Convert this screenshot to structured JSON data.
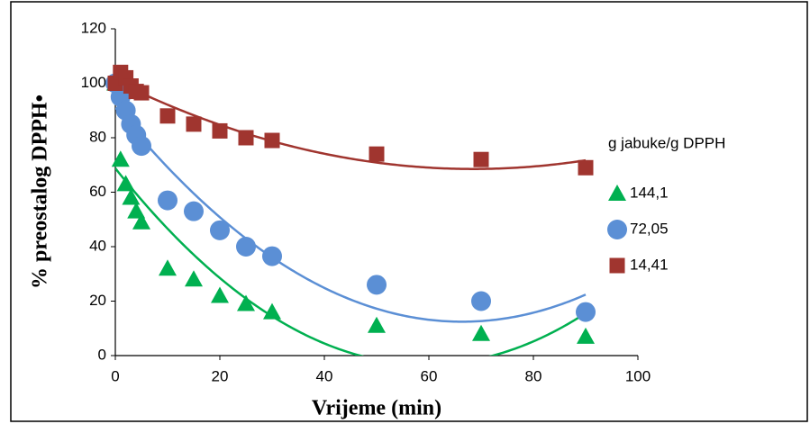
{
  "chart_data": {
    "type": "scatter",
    "x_label": "Vrijeme (min)",
    "y_label": "% preostalog DPPH•",
    "legend_title": "g jabuke/g DPPH",
    "legend": "right",
    "grid": false,
    "trendline_order": 2,
    "x": [
      0,
      1,
      2,
      3,
      4,
      5,
      10,
      15,
      20,
      25,
      30,
      50,
      70,
      90
    ],
    "series": [
      {
        "name": "144,1",
        "marker": "triangle",
        "color": "#00b050",
        "values": [
          100,
          72,
          63,
          58,
          53,
          49,
          32,
          28,
          22,
          19,
          16,
          11,
          8,
          7
        ]
      },
      {
        "name": "72,05",
        "marker": "circle",
        "color": "#5b8fd5",
        "values": [
          100,
          95,
          90,
          85,
          81,
          77,
          57,
          53,
          46,
          40,
          36.5,
          26,
          20,
          16
        ]
      },
      {
        "name": "14,41",
        "marker": "square",
        "color": "#a0352f",
        "values": [
          100,
          104,
          102,
          99,
          97,
          96.5,
          88,
          85,
          82.5,
          80,
          79,
          74,
          72,
          69
        ]
      }
    ],
    "xlim": [
      0,
      100
    ],
    "xticks": [
      0,
      20,
      40,
      60,
      80,
      100
    ],
    "ylim": [
      0,
      120
    ],
    "yticks": [
      0,
      20,
      40,
      60,
      80,
      100,
      120
    ]
  }
}
